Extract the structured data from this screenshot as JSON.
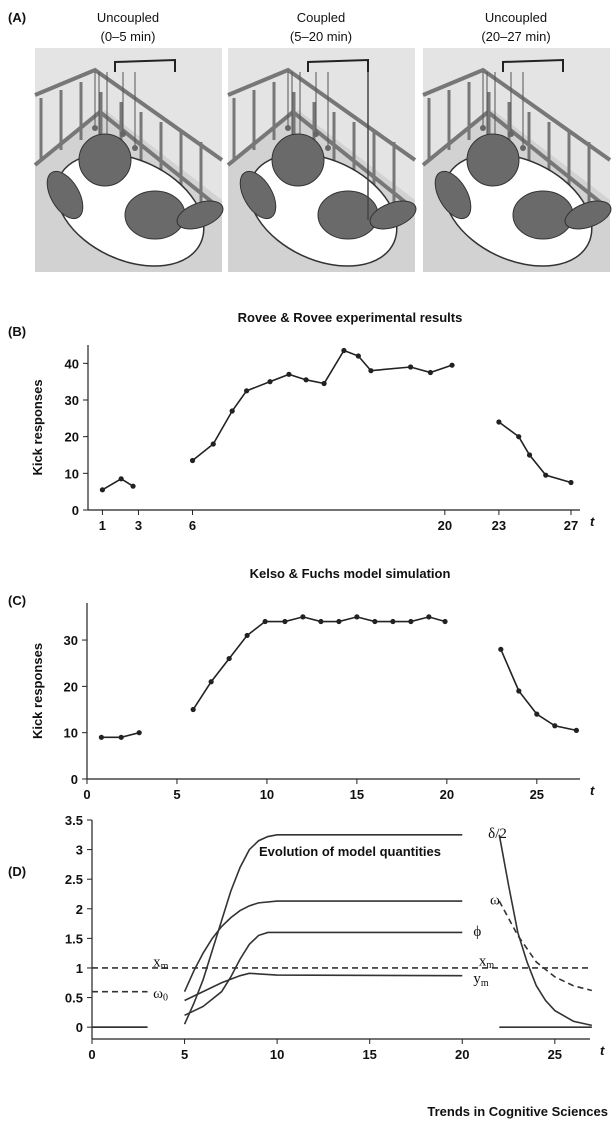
{
  "panel_a": {
    "label": "(A)",
    "panels": [
      {
        "title": "Uncoupled",
        "subtitle": "(0–5 min)"
      },
      {
        "title": "Coupled",
        "subtitle": "(5–20 min)"
      },
      {
        "title": "Uncoupled",
        "subtitle": "(20–27 min)"
      }
    ]
  },
  "chart_data": [
    {
      "type": "line",
      "label": "(B)",
      "title": "Rovee & Rovee experimental results",
      "y_label": "Kick responses",
      "x_label": "t",
      "color": "#222",
      "markers": true,
      "x": [
        1,
        2.04,
        2.7,
        null,
        6,
        7.15,
        8.2,
        9.0,
        10.3,
        11.35,
        12.3,
        13.3,
        14.4,
        15.2,
        15.9,
        18.1,
        19.2,
        20.4,
        null,
        23,
        24.1,
        24.7,
        25.6,
        27
      ],
      "values": [
        5.5,
        8.5,
        6.5,
        null,
        13.5,
        18,
        27,
        32.5,
        35,
        37,
        35.5,
        34.5,
        43.5,
        42,
        38,
        39,
        37.5,
        39.5,
        null,
        24,
        20,
        15,
        9.5,
        7.5
      ],
      "xlim": [
        0.2,
        27.5
      ],
      "ylim": [
        0,
        45
      ],
      "xticks": [
        1,
        3,
        6,
        20,
        23,
        27
      ],
      "yticks": [
        0,
        10,
        20,
        30,
        40
      ]
    },
    {
      "type": "line",
      "label": "(C)",
      "title": "Kelso & Fuchs model simulation",
      "y_label": "Kick responses",
      "x_label": "t",
      "color": "#222",
      "markers": true,
      "x": [
        0.8,
        1.9,
        2.9,
        null,
        5.9,
        6.9,
        7.9,
        8.9,
        9.9,
        11,
        12,
        13,
        14,
        15,
        16,
        17,
        18,
        19,
        19.9,
        null,
        23,
        24,
        25,
        26,
        27.2
      ],
      "values": [
        9,
        9,
        10,
        null,
        15,
        21,
        26,
        31,
        34,
        34,
        35,
        34,
        34,
        35,
        34,
        34,
        34,
        35,
        34,
        null,
        28,
        19,
        14,
        11.5,
        10.5
      ],
      "xlim": [
        0,
        27.4
      ],
      "ylim": [
        0,
        38
      ],
      "xticks": [
        0,
        5,
        10,
        15,
        20,
        25
      ],
      "yticks": [
        0,
        10,
        20,
        30
      ]
    },
    {
      "type": "line",
      "label": "(D)",
      "title": "Evolution of model quantities",
      "x_label": "t",
      "color": "#333",
      "markers": false,
      "series": [
        {
          "name": "δ/2",
          "x": [
            0,
            3,
            null,
            5,
            5.5,
            6,
            6.5,
            7,
            7.5,
            8,
            8.5,
            9,
            9.5,
            10,
            12,
            20,
            null,
            22,
            22.5,
            23,
            23.5,
            24,
            24.5,
            25,
            26,
            27
          ],
          "values": [
            0,
            0,
            null,
            0.05,
            0.4,
            0.8,
            1.3,
            1.8,
            2.3,
            2.7,
            3.0,
            3.15,
            3.22,
            3.25,
            3.25,
            3.25,
            null,
            3.25,
            2.4,
            1.6,
            1.1,
            0.7,
            0.45,
            0.28,
            0.1,
            0.03
          ],
          "dashes": [
            false,
            false,
            false
          ]
        },
        {
          "name": "ω",
          "x": [
            5,
            5.5,
            6,
            6.5,
            7,
            7.5,
            8,
            8.5,
            9,
            10,
            20,
            null,
            22,
            23,
            24,
            25,
            26,
            27
          ],
          "values": [
            0.6,
            0.95,
            1.25,
            1.5,
            1.7,
            1.85,
            1.97,
            2.05,
            2.1,
            2.13,
            2.13,
            null,
            2.13,
            1.55,
            1.1,
            0.85,
            0.7,
            0.62
          ],
          "dashes": [
            false,
            true
          ]
        },
        {
          "name": "ϕ",
          "x": [
            0,
            3,
            null,
            5,
            6,
            7,
            7.5,
            8,
            8.5,
            9,
            9.5,
            10,
            20,
            null,
            22,
            27
          ],
          "values": [
            0,
            0,
            null,
            0.2,
            0.35,
            0.6,
            0.85,
            1.15,
            1.4,
            1.55,
            1.6,
            1.6,
            1.6,
            null,
            0,
            0
          ],
          "dashes": [
            false,
            false,
            false
          ]
        },
        {
          "name": "ym",
          "x": [
            5,
            6,
            7,
            8,
            8.5,
            9,
            10,
            20
          ],
          "values": [
            0.45,
            0.6,
            0.75,
            0.87,
            0.91,
            0.9,
            0.88,
            0.87
          ],
          "dashes": [
            false
          ]
        },
        {
          "name": "xm",
          "x": [
            0,
            27
          ],
          "values": [
            1,
            1
          ],
          "dashes": [
            true
          ]
        },
        {
          "name": "ω0",
          "x": [
            0,
            3
          ],
          "values": [
            0.6,
            0.6
          ],
          "dashes": [
            true
          ]
        }
      ],
      "xlim": [
        0,
        26.9
      ],
      "ylim": [
        -0.2,
        3.5
      ],
      "xticks": [
        0,
        5,
        10,
        15,
        20,
        25
      ],
      "yticks": [
        0,
        0.5,
        1,
        1.5,
        2,
        2.5,
        3,
        3.5
      ]
    }
  ],
  "footer": "Trends in Cognitive Sciences"
}
